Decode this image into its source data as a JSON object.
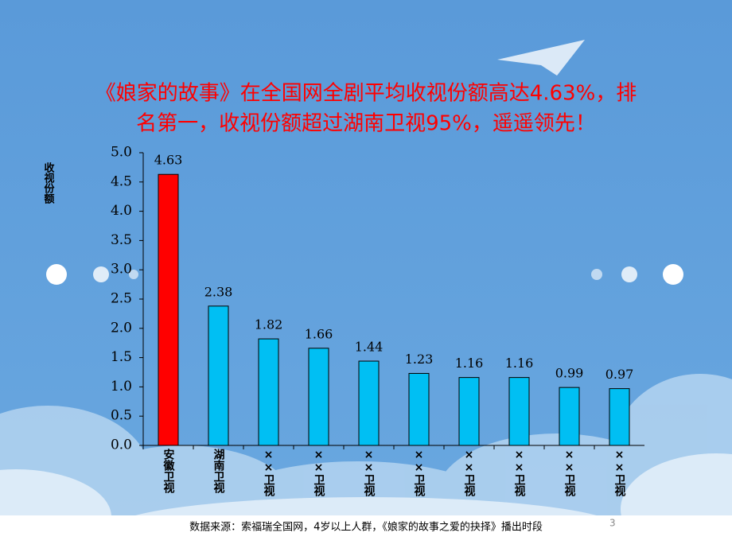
{
  "chart_data": {
    "type": "bar",
    "title": [
      "《娘家的故事》在全国网全剧平均收视份额高达4.63%，排",
      "名第一，收视份额超过湖南卫视95%，遥遥领先！"
    ],
    "y_label": "收视份额",
    "categories": [
      "安徽卫视",
      "湖南卫视",
      "××卫视",
      "××卫视",
      "××卫视",
      "××卫视",
      "××卫视",
      "××卫视",
      "××卫视",
      "××卫视"
    ],
    "values": [
      4.63,
      2.38,
      1.82,
      1.66,
      1.44,
      1.23,
      1.16,
      1.16,
      0.99,
      0.97
    ],
    "colors": [
      "#ff0000",
      "#00bff3",
      "#00bff3",
      "#00bff3",
      "#00bff3",
      "#00bff3",
      "#00bff3",
      "#00bff3",
      "#00bff3",
      "#00bff3"
    ],
    "ylim": [
      0,
      5
    ],
    "yticks": [
      {
        "value": 0,
        "label": "0.0"
      },
      {
        "value": 0.5,
        "label": "0.5"
      },
      {
        "value": 1,
        "label": "1.0"
      },
      {
        "value": 1.5,
        "label": "1.5"
      },
      {
        "value": 2,
        "label": "2.0"
      },
      {
        "value": 2.5,
        "label": "2.5"
      },
      {
        "value": 3,
        "label": "3.0"
      },
      {
        "value": 3.5,
        "label": "3.5"
      },
      {
        "value": 4,
        "label": "4.0"
      },
      {
        "value": 4.5,
        "label": "4.5"
      },
      {
        "value": 5,
        "label": "5.0"
      }
    ],
    "grid": false,
    "source": "数据来源：索福瑞全国网，4岁以上人群，《娘家的故事之爱的抉择》播出时段",
    "page_number": "3"
  }
}
